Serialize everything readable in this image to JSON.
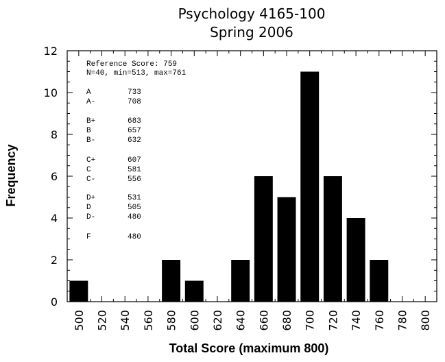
{
  "chart_data": {
    "type": "bar",
    "title": "Psychology 4165-100",
    "subtitle": "Spring 2006",
    "xlabel": "Total Score (maximum 800)",
    "ylabel": "Frequency",
    "xlim": [
      490,
      810
    ],
    "ylim": [
      0,
      12
    ],
    "bin_width": 20,
    "x_ticks": [
      "500",
      "520",
      "540",
      "560",
      "580",
      "600",
      "620",
      "640",
      "660",
      "680",
      "700",
      "720",
      "740",
      "760",
      "780",
      "800"
    ],
    "y_ticks": [
      "0",
      "2",
      "4",
      "6",
      "8",
      "10",
      "12"
    ],
    "x": [
      500,
      520,
      540,
      560,
      580,
      600,
      620,
      640,
      660,
      680,
      700,
      720,
      740,
      760,
      780,
      800
    ],
    "values": [
      1,
      0,
      0,
      0,
      2,
      1,
      0,
      2,
      6,
      5,
      11,
      6,
      4,
      2,
      0,
      0
    ],
    "grid": false,
    "legend": "none",
    "bar_color": "#000000",
    "annotations": {
      "reference": "Reference Score: 759",
      "stats": "N=40, min=513, max=761",
      "grades": [
        {
          "grade": "A",
          "score": "733"
        },
        {
          "grade": "A-",
          "score": "708"
        },
        {
          "grade": "B+",
          "score": "683"
        },
        {
          "grade": "B",
          "score": "657"
        },
        {
          "grade": "B-",
          "score": "632"
        },
        {
          "grade": "C+",
          "score": "607"
        },
        {
          "grade": "C",
          "score": "581"
        },
        {
          "grade": "C-",
          "score": "556"
        },
        {
          "grade": "D+",
          "score": "531"
        },
        {
          "grade": "D",
          "score": "505"
        },
        {
          "grade": "D-",
          "score": "480"
        },
        {
          "grade": "F",
          "score": "480"
        }
      ]
    }
  }
}
